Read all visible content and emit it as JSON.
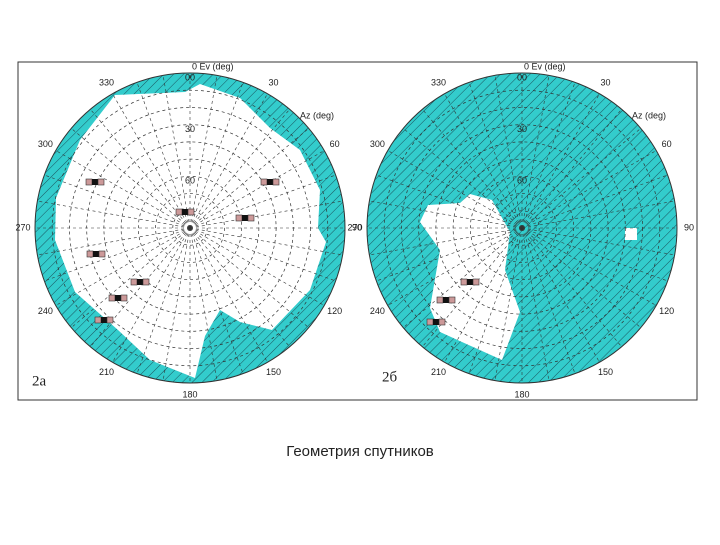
{
  "panels": [
    {
      "label": "2а",
      "elevation_axis": "0 Ev (deg)",
      "azimuth_axis": "Az (deg)",
      "azimuth_labels": [
        "330",
        "30",
        "300",
        "60",
        "270",
        "90",
        "240",
        "120",
        "210",
        "150",
        "180"
      ],
      "elevation_labels": [
        "00",
        "30",
        "60"
      ]
    },
    {
      "label": "2б",
      "elevation_axis": "0 Ev (deg)",
      "azimuth_axis": "Az (deg)",
      "azimuth_labels": [
        "330",
        "30",
        "300",
        "60",
        "270",
        "90",
        "240",
        "120",
        "210",
        "150",
        "180"
      ],
      "elevation_labels": [
        "00",
        "30",
        "60"
      ]
    }
  ],
  "caption": "Геометрия спутников"
}
